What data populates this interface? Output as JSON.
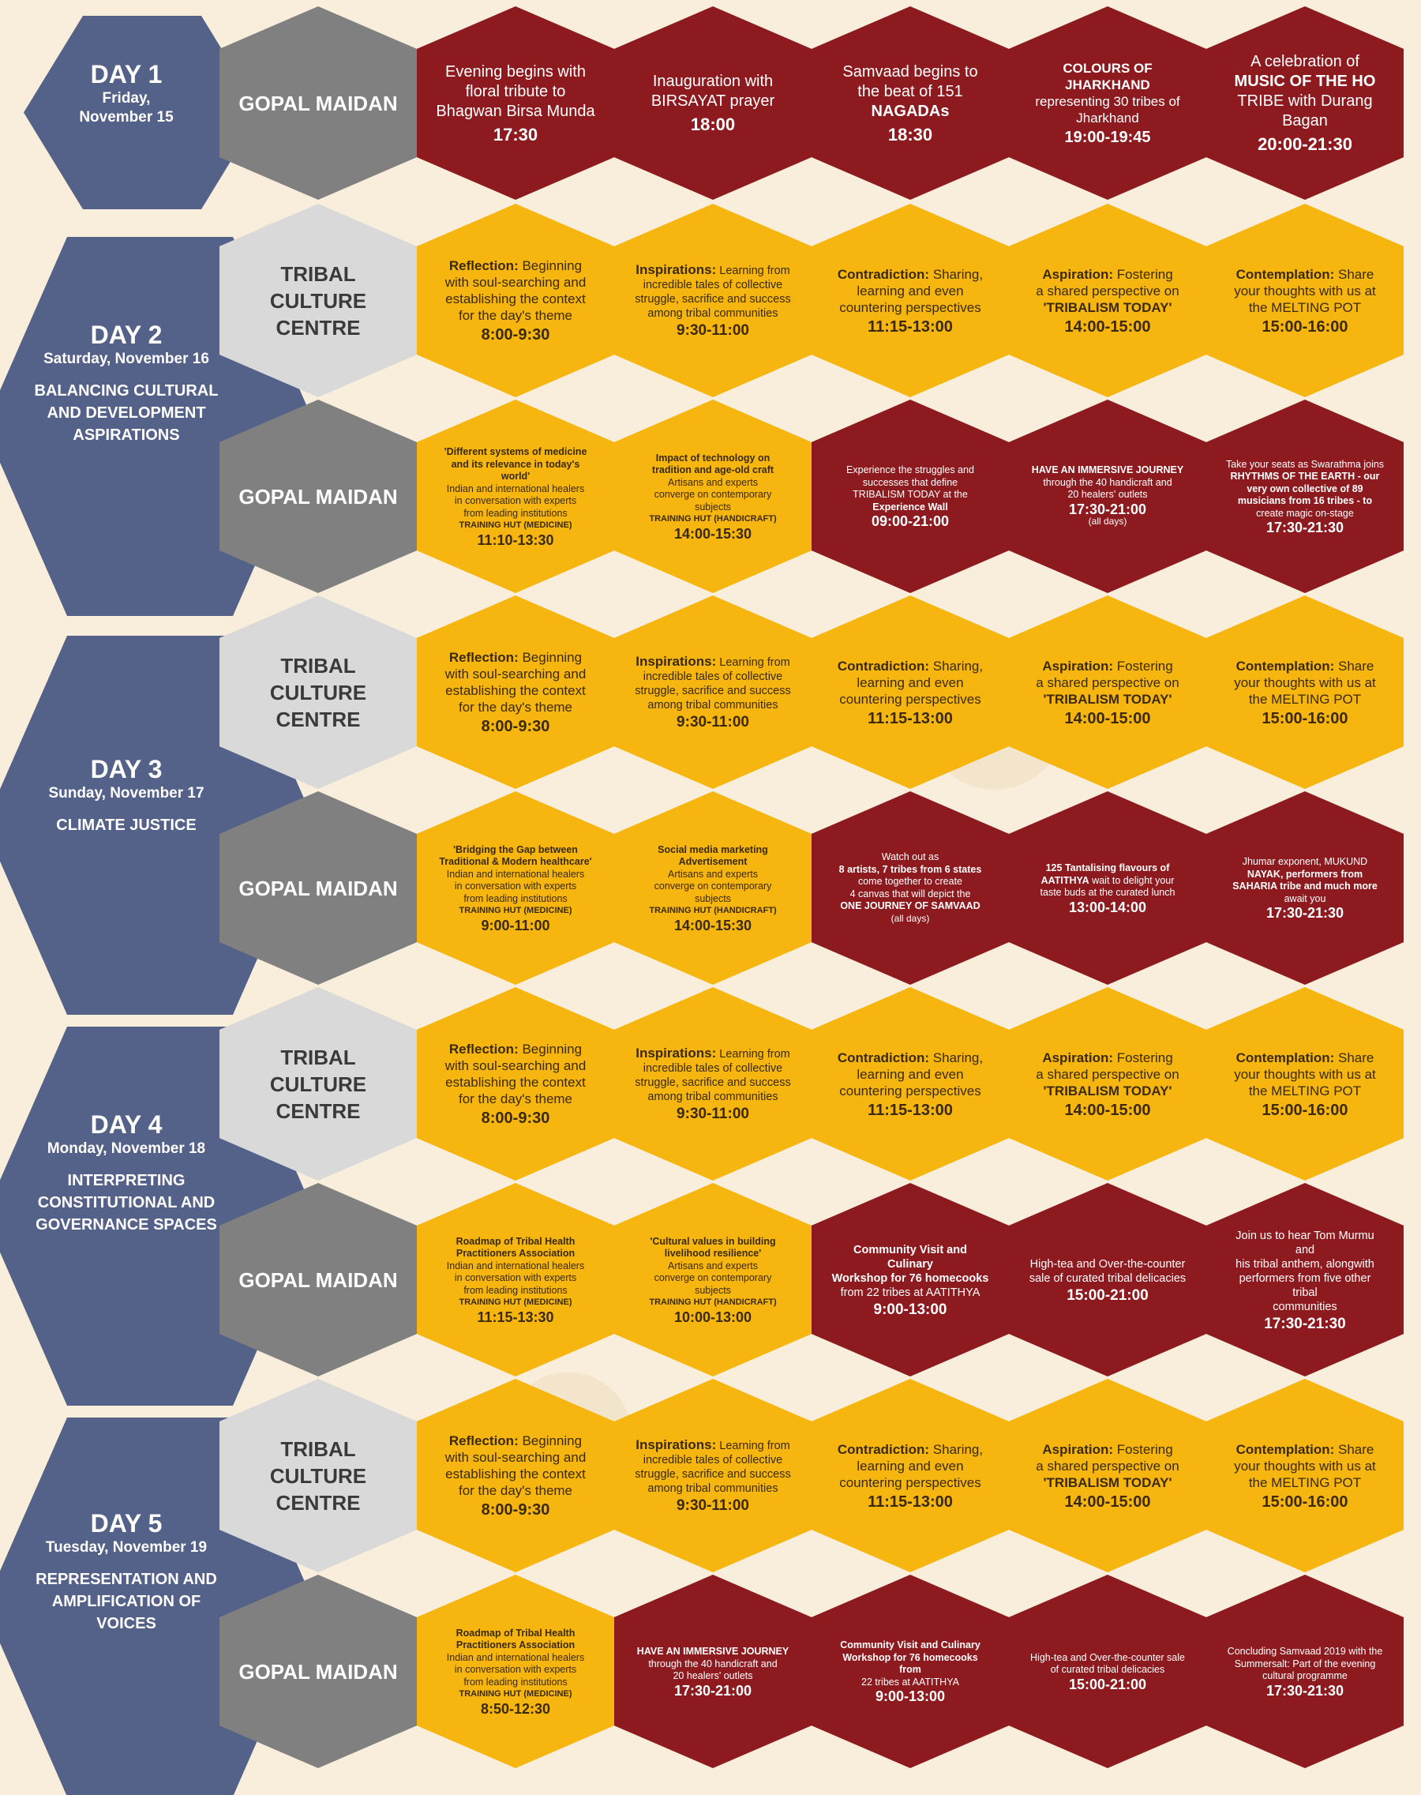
{
  "colors": {
    "day": "#546188",
    "venue_dark": "#808080",
    "venue_light": "#d9d9d9",
    "session_yellow": "#f6b50f",
    "event_red": "#8d1a1f",
    "background": "#f8eedb"
  },
  "days": [
    {
      "title": "DAY 1",
      "date_line1": "Friday,",
      "date_line2": "November 15"
    },
    {
      "title": "DAY 2",
      "date": "Saturday, November 16",
      "theme": "BALANCING CULTURAL AND DEVELOPMENT ASPIRATIONS"
    },
    {
      "title": "DAY 3",
      "date": "Sunday, November 17",
      "theme": "CLIMATE JUSTICE"
    },
    {
      "title": "DAY 4",
      "date": "Monday, November 18",
      "theme": "INTERPRETING CONSTITUTIONAL AND GOVERNANCE SPACES"
    },
    {
      "title": "DAY 5",
      "date": "Tuesday, November 19",
      "theme": "REPRESENTATION AND AMPLIFICATION OF VOICES"
    }
  ],
  "venues": {
    "gopal": "GOPAL MAIDAN",
    "tcc1": "TRIBAL",
    "tcc2": "CULTURE",
    "tcc3": "CENTRE"
  },
  "day1": [
    {
      "l1": "Evening begins with",
      "l2": "floral tribute to",
      "l3": "Bhagwan Birsa Munda",
      "time": "17:30"
    },
    {
      "l1": "Inauguration with",
      "l2": "BIRSAYAT prayer",
      "time": "18:00"
    },
    {
      "l1": "Samvaad begins to",
      "l2": "the beat of 151",
      "l3": "NAGADAs",
      "time": "18:30"
    },
    {
      "l1": "COLOURS OF",
      "l2": "JHARKHAND",
      "l3": "representing 30 tribes of",
      "l4": "Jharkhand",
      "time": "19:00-19:45"
    },
    {
      "l1": "A celebration of",
      "l2": "MUSIC OF THE HO",
      "l3": "TRIBE with Durang",
      "l4": "Bagan",
      "time": "20:00-21:30"
    }
  ],
  "tcc": [
    {
      "head": "Reflection:",
      "l1": "Beginning",
      "l2": "with soul-searching and",
      "l3": "establishing the context",
      "l4": "for the day's theme",
      "time": "8:00-9:30"
    },
    {
      "head": "Inspirations:",
      "l1": "Learning from",
      "l2": "incredible tales of collective",
      "l3": "struggle, sacrifice and success",
      "l4": "among tribal communities",
      "time": "9:30-11:00"
    },
    {
      "head": "Contradiction:",
      "l1": "Sharing,",
      "l2": "learning and even",
      "l3": "countering perspectives",
      "time": "11:15-13:00"
    },
    {
      "head": "Aspiration:",
      "l1": "Fostering",
      "l2": "a shared perspective on",
      "l3": "'TRIBALISM TODAY'",
      "time": "14:00-15:00"
    },
    {
      "head": "Contemplation:",
      "l1": "Share",
      "l2": "your thoughts with us at",
      "l3": "the MELTING POT",
      "time": "15:00-16:00"
    }
  ],
  "day2_gopal": [
    {
      "b1": "'Different systems of medicine",
      "b2": "and its relevance in today's",
      "b3": "world'",
      "l1": "Indian and international healers",
      "l2": "in conversation with experts",
      "l3": "from leading institutions",
      "sub": "TRAINING HUT (MEDICINE)",
      "time": "11:10-13:30"
    },
    {
      "b1": "Impact of technology on",
      "b2": "tradition and age-old craft",
      "l1": "Artisans and experts",
      "l2": "converge on contemporary",
      "l3": "subjects",
      "sub": "TRAINING HUT (HANDICRAFT)",
      "time": "14:00-15:30"
    },
    {
      "l1": "Experience the struggles and",
      "l2": "successes that define",
      "l3": "TRIBALISM TODAY at the",
      "sub": "Experience Wall",
      "time": "09:00-21:00"
    },
    {
      "b1": "HAVE AN IMMERSIVE JOURNEY",
      "l1": "through the 40 handicraft and",
      "l2": "20 healers' outlets",
      "time": "17:30-21:00",
      "note": "(all days)"
    },
    {
      "l1": "Take your seats as Swarathma joins",
      "b1": "RHYTHMS OF THE EARTH - our",
      "b2": "very own collective of 89",
      "b3": "musicians from 16 tribes - to",
      "l2": "create magic on-stage",
      "time": "17:30-21:30"
    }
  ],
  "day3_gopal": [
    {
      "b1": "'Bridging the Gap between",
      "b2": "Traditional & Modern healthcare'",
      "l1": "Indian and international healers",
      "l2": "in conversation with experts",
      "l3": "from leading institutions",
      "sub": "TRAINING HUT (MEDICINE)",
      "time": "9:00-11:00"
    },
    {
      "b1": "Social media marketing",
      "b2": "Advertisement",
      "l1": "Artisans and experts",
      "l2": "converge on contemporary",
      "l3": "subjects",
      "sub": "TRAINING HUT (HANDICRAFT)",
      "time": "14:00-15:30"
    },
    {
      "l1": "Watch out as",
      "b1": "8 artists, 7 tribes from 6 states",
      "l2": "come together to create",
      "l3": "4 canvas that will depict the",
      "b2": "ONE JOURNEY OF SAMVAAD",
      "note": "(all days)"
    },
    {
      "b1": "125 Tantalising flavours of",
      "b2": "AATITHYA",
      "l1": "wait to delight your",
      "l2": "taste buds at the curated lunch",
      "time": "13:00-14:00"
    },
    {
      "l1": "Jhumar exponent, MUKUND",
      "b1": "NAYAK, performers from",
      "b2": "SAHARIA tribe and much more",
      "l2": "await you",
      "time": "17:30-21:30"
    }
  ],
  "day4_gopal": [
    {
      "b1": "Roadmap of Tribal Health",
      "b2": "Practitioners Association",
      "l1": "Indian and international healers",
      "l2": "in conversation with experts",
      "l3": "from leading institutions",
      "sub": "TRAINING HUT (MEDICINE)",
      "time": "11:15-13:30"
    },
    {
      "b1": "'Cultural values in building",
      "b2": "livelihood resilience'",
      "l1": "Artisans and experts",
      "l2": "converge on contemporary",
      "l3": "subjects",
      "sub": "TRAINING HUT (HANDICRAFT)",
      "time": "10:00-13:00"
    },
    {
      "b1": "Community Visit and Culinary",
      "b2": "Workshop for 76 homecooks",
      "l1": "from 22 tribes at AATITHYA",
      "time": "9:00-13:00"
    },
    {
      "l1": "High-tea and Over-the-counter",
      "l2": "sale of curated tribal delicacies",
      "time": "15:00-21:00"
    },
    {
      "l1": "Join us to hear Tom Murmu and",
      "l2": "his tribal anthem, alongwith",
      "l3": "performers from five other tribal",
      "l4": "communities",
      "time": "17:30-21:30"
    }
  ],
  "day5_gopal": [
    {
      "b1": "Roadmap of Tribal Health",
      "b2": "Practitioners Association",
      "l1": "Indian and international healers",
      "l2": "in conversation with experts",
      "l3": "from leading institutions",
      "sub": "TRAINING HUT (MEDICINE)",
      "time": "8:50-12:30"
    },
    {
      "b1": "HAVE AN IMMERSIVE JOURNEY",
      "l1": "through the 40 handicraft and",
      "l2": "20 healers' outlets",
      "time": "17:30-21:00"
    },
    {
      "b1": "Community Visit and Culinary",
      "b2": "Workshop for 76 homecooks from",
      "l1": "22 tribes at AATITHYA",
      "time": "9:00-13:00"
    },
    {
      "l1": "High-tea and Over-the-counter sale",
      "l2": "of curated tribal delicacies",
      "time": "15:00-21:00"
    },
    {
      "l1": "Concluding Samvaad 2019 with the",
      "l2": "Summersalt: Part of the evening",
      "l3": "cultural programme",
      "time": "17:30-21:30"
    }
  ]
}
